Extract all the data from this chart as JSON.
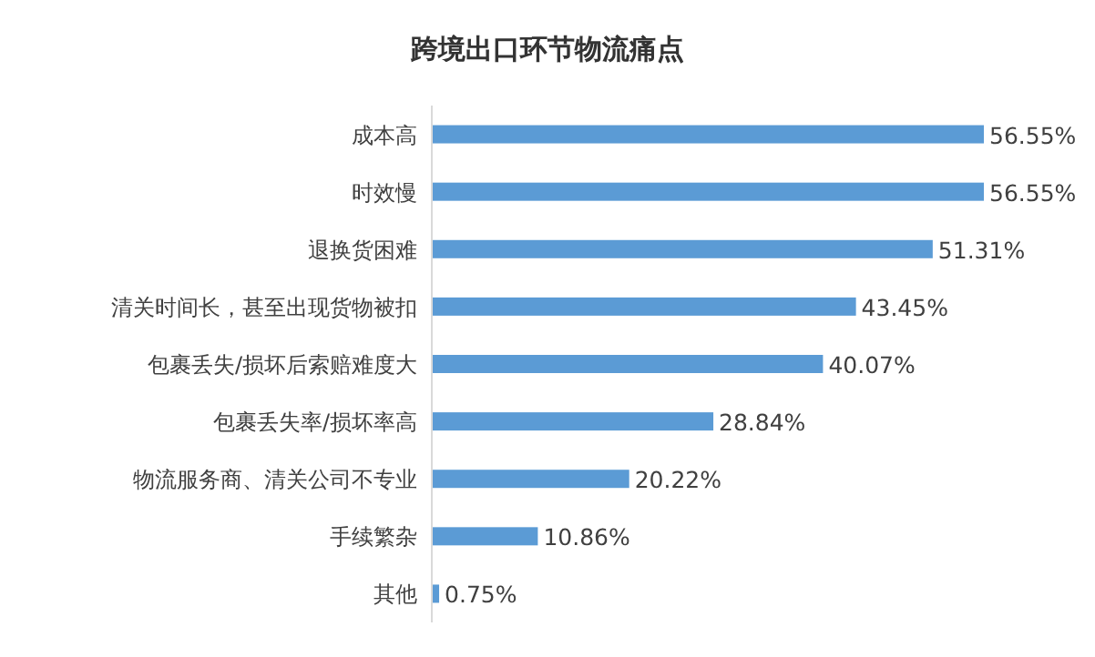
{
  "chart_data": {
    "type": "bar",
    "orientation": "horizontal",
    "title": "跨境出口环节物流痛点",
    "categories": [
      "成本高",
      "时效慢",
      "退换货困难",
      "清关时间长，甚至出现货物被扣",
      "包裹丢失/损坏后索赔难度大",
      "包裹丢失率/损坏率高",
      "物流服务商、清关公司不专业",
      "手续繁杂",
      "其他"
    ],
    "values": [
      56.55,
      56.55,
      51.31,
      43.45,
      40.07,
      28.84,
      20.22,
      10.86,
      0.75
    ],
    "value_labels": [
      "56.55%",
      "56.55%",
      "51.31%",
      "43.45%",
      "40.07%",
      "28.84%",
      "20.22%",
      "10.86%",
      "0.75%"
    ],
    "color": "#5b9bd5",
    "data_labels": true
  }
}
